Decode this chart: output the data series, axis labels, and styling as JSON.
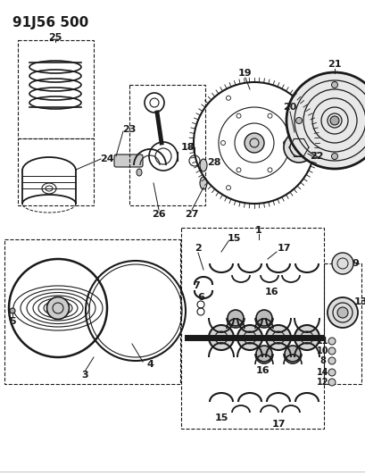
{
  "title": "91J56 500",
  "bg_color": "#ffffff",
  "line_color": "#1a1a1a",
  "fig_width": 4.1,
  "fig_height": 5.33,
  "dpi": 100
}
